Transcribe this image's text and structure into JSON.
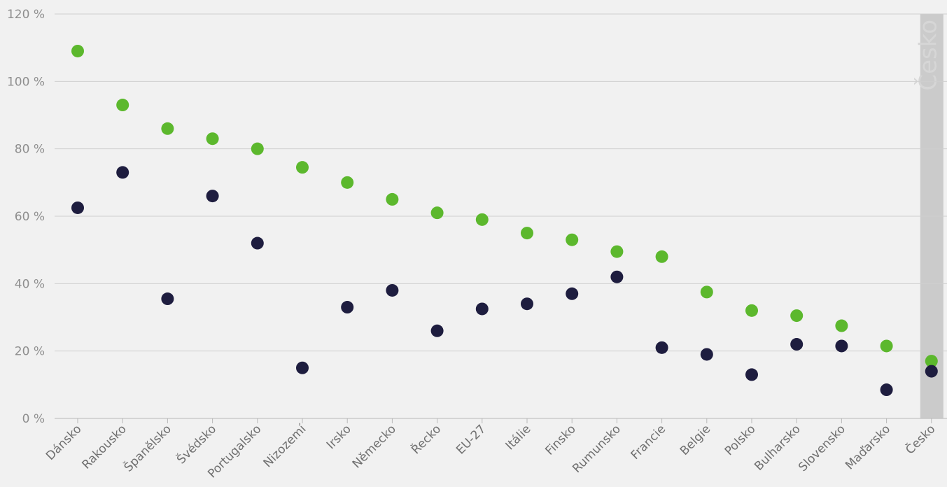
{
  "chart_data": {
    "type": "scatter",
    "categories": [
      "Dánsko",
      "Rakousko",
      "Španělsko",
      "Švédsko",
      "Portugalsko",
      "Nizozemí",
      "Irsko",
      "Německo",
      "Řecko",
      "EU-27",
      "Itálie",
      "Finsko",
      "Rumunsko",
      "Francie",
      "Belgie",
      "Polsko",
      "Bulharsko",
      "Slovensko",
      "Maďarsko",
      "Česko"
    ],
    "series": [
      {
        "color": "#5cb82d",
        "values": [
          109,
          93,
          86,
          83,
          80,
          74.5,
          70,
          65,
          61,
          59,
          55,
          53,
          49.5,
          48,
          37.5,
          32,
          30.5,
          27.5,
          21.5,
          17
        ]
      },
      {
        "color": "#1e1d3f",
        "values": [
          62.5,
          73,
          35.5,
          66,
          52,
          15,
          33,
          38,
          26,
          32.5,
          34,
          37,
          42,
          21,
          19,
          13,
          22,
          21.5,
          8.5,
          14
        ]
      }
    ],
    "yticks": [
      0,
      20,
      40,
      60,
      80,
      100,
      120
    ],
    "ytick_labels": [
      "0 %",
      "20 %",
      "40 %",
      "60 %",
      "80 %",
      "100 %",
      "120 %"
    ],
    "ylim": [
      0,
      120
    ],
    "grid": true,
    "highlight": {
      "category": "Česko",
      "label": "Česko",
      "color": "#cbcbcb"
    }
  }
}
